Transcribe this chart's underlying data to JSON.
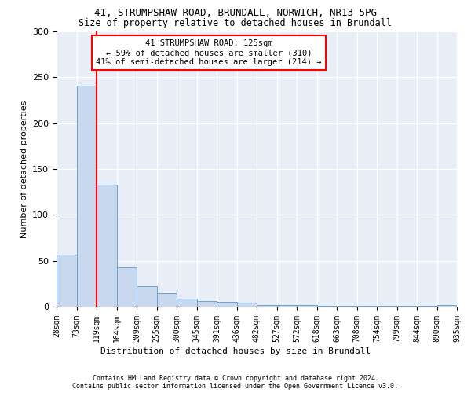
{
  "title1": "41, STRUMPSHAW ROAD, BRUNDALL, NORWICH, NR13 5PG",
  "title2": "Size of property relative to detached houses in Brundall",
  "xlabel": "Distribution of detached houses by size in Brundall",
  "ylabel": "Number of detached properties",
  "bar_values": [
    57,
    241,
    133,
    43,
    22,
    15,
    9,
    6,
    5,
    4,
    2,
    2,
    2,
    1,
    1,
    1,
    1,
    1,
    1,
    2
  ],
  "bin_labels": [
    "28sqm",
    "73sqm",
    "119sqm",
    "164sqm",
    "209sqm",
    "255sqm",
    "300sqm",
    "345sqm",
    "391sqm",
    "436sqm",
    "482sqm",
    "527sqm",
    "572sqm",
    "618sqm",
    "663sqm",
    "708sqm",
    "754sqm",
    "799sqm",
    "844sqm",
    "890sqm",
    "935sqm"
  ],
  "bar_color": "#c8d8ee",
  "bar_edge_color": "#6fa0cc",
  "red_line_x": 2,
  "annotation_text": "41 STRUMPSHAW ROAD: 125sqm\n← 59% of detached houses are smaller (310)\n41% of semi-detached houses are larger (214) →",
  "annotation_box_color": "white",
  "annotation_box_edge": "red",
  "ylim": [
    0,
    300
  ],
  "yticks": [
    0,
    50,
    100,
    150,
    200,
    250,
    300
  ],
  "bg_color": "#e8eef8",
  "footer1": "Contains HM Land Registry data © Crown copyright and database right 2024.",
  "footer2": "Contains public sector information licensed under the Open Government Licence v3.0."
}
